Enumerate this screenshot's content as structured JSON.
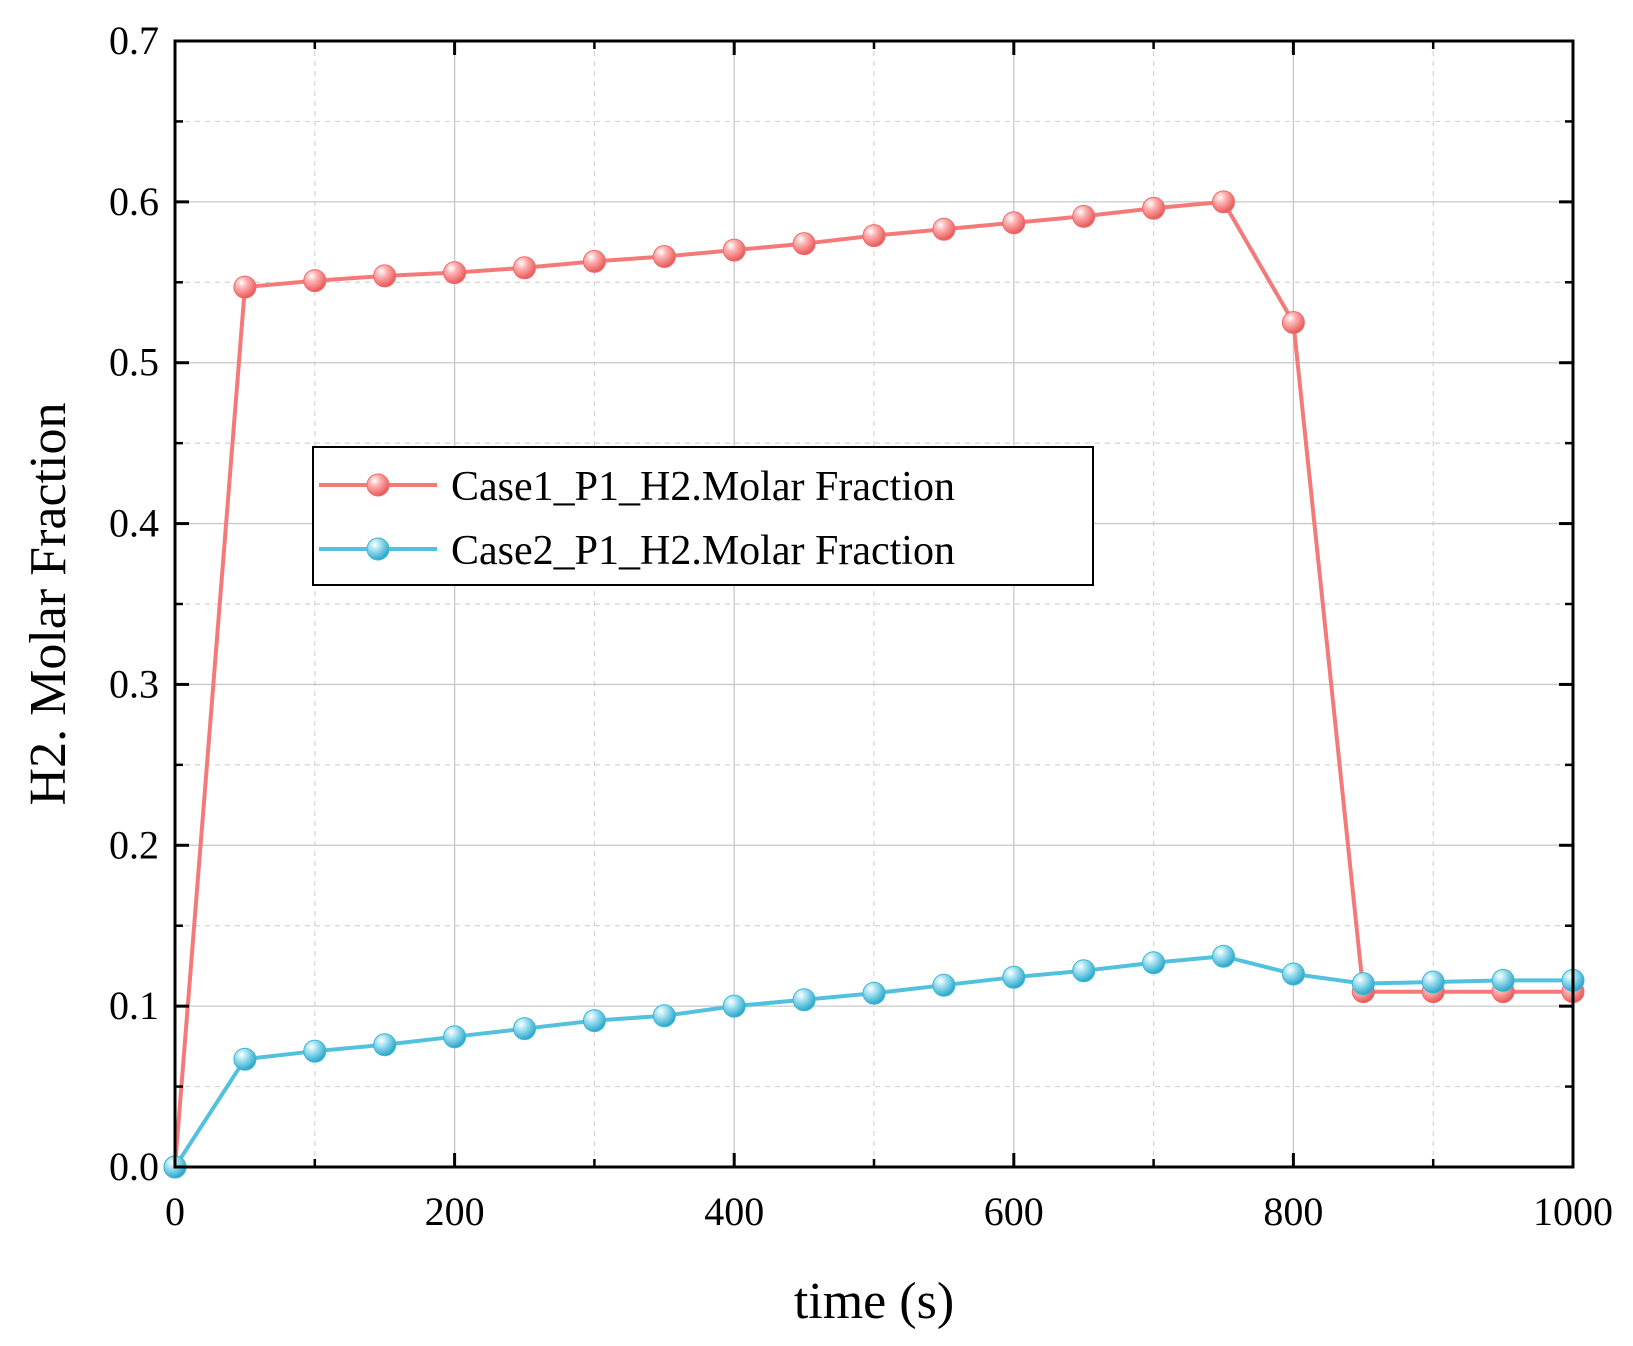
{
  "chart_data": {
    "type": "line",
    "title": "",
    "xlabel": "time (s)",
    "ylabel": "H2. Molar Fraction",
    "xlim": [
      0,
      1000
    ],
    "ylim": [
      0,
      0.7
    ],
    "xticks": [
      0,
      200,
      400,
      600,
      800,
      1000
    ],
    "xtick_labels": [
      "0",
      "200",
      "400",
      "600",
      "800",
      "1000"
    ],
    "xminor": [
      100,
      300,
      500,
      700,
      900
    ],
    "yticks": [
      0,
      0.1,
      0.2,
      0.3,
      0.4,
      0.5,
      0.6,
      0.7
    ],
    "ytick_labels": [
      "0.0",
      "0.1",
      "0.2",
      "0.3",
      "0.4",
      "0.5",
      "0.6",
      "0.7"
    ],
    "yminor": [
      0.05,
      0.15,
      0.25,
      0.35,
      0.45,
      0.55,
      0.65
    ],
    "grid": true,
    "legend_position": "center-left",
    "x": [
      0,
      50,
      100,
      150,
      200,
      250,
      300,
      350,
      400,
      450,
      500,
      550,
      600,
      650,
      700,
      750,
      800,
      850,
      900,
      950,
      1000
    ],
    "series": [
      {
        "name": "Case1_P1_H2.Molar Fraction",
        "color": "#f47a7a",
        "marker_color": "#f26a6a",
        "values": [
          0.0,
          0.547,
          0.551,
          0.554,
          0.556,
          0.559,
          0.563,
          0.566,
          0.57,
          0.574,
          0.579,
          0.583,
          0.587,
          0.591,
          0.596,
          0.6,
          0.525,
          0.109,
          0.109,
          0.109,
          0.109
        ]
      },
      {
        "name": "Case2_P1_H2.Molar Fraction",
        "color": "#52c1dd",
        "marker_color": "#3cb6d6",
        "values": [
          0.0,
          0.067,
          0.072,
          0.076,
          0.081,
          0.086,
          0.091,
          0.094,
          0.1,
          0.104,
          0.108,
          0.113,
          0.118,
          0.122,
          0.127,
          0.131,
          0.12,
          0.114,
          0.115,
          0.116,
          0.116
        ]
      }
    ]
  }
}
